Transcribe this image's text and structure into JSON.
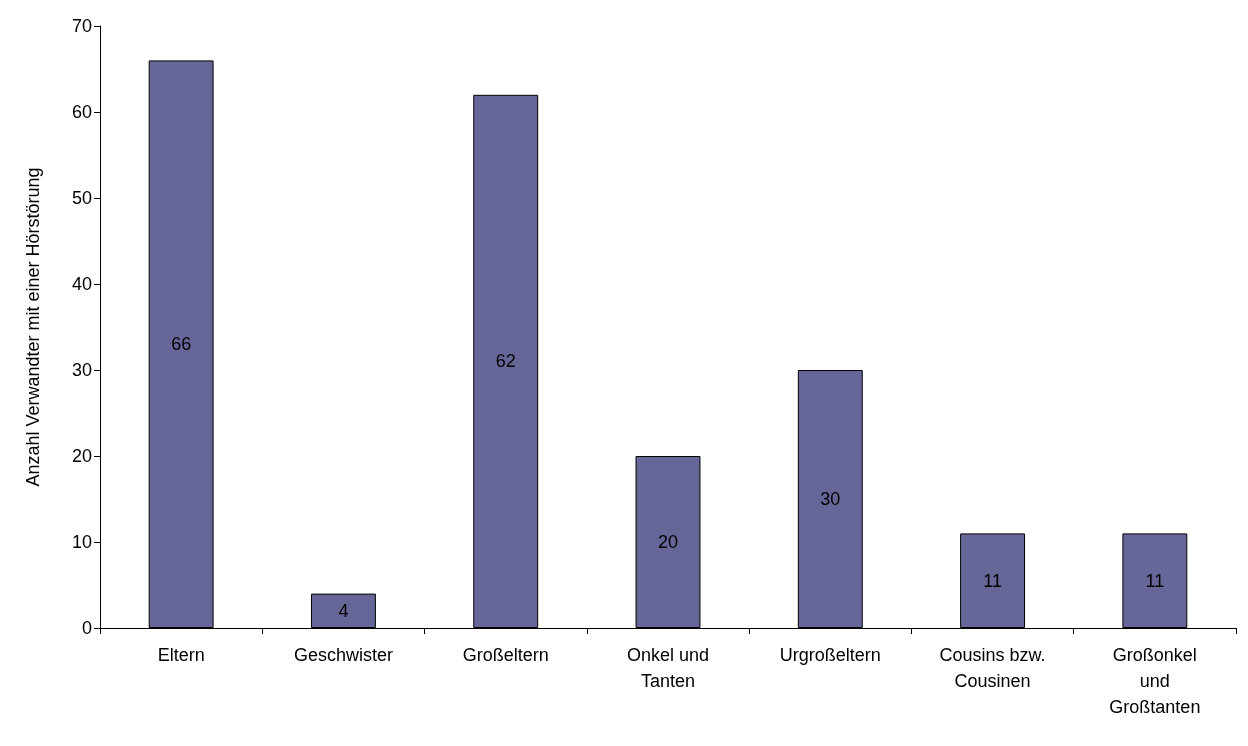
{
  "chart_data": {
    "type": "bar",
    "ylabel": "Anzahl Verwandter mit einer Hörstörung",
    "categories": [
      "Eltern",
      "Geschwister",
      "Großeltern",
      "Onkel und\nTanten",
      "Urgroßeltern",
      "Cousins bzw.\nCousinen",
      "Großonkel\nund\nGroßtanten"
    ],
    "values": [
      66,
      4,
      62,
      20,
      30,
      11,
      11
    ],
    "color": "#666699",
    "ylim": [
      0,
      70
    ],
    "yticks": [
      0,
      10,
      20,
      30,
      40,
      50,
      60,
      70
    ],
    "grid": false,
    "data_labels": true
  }
}
